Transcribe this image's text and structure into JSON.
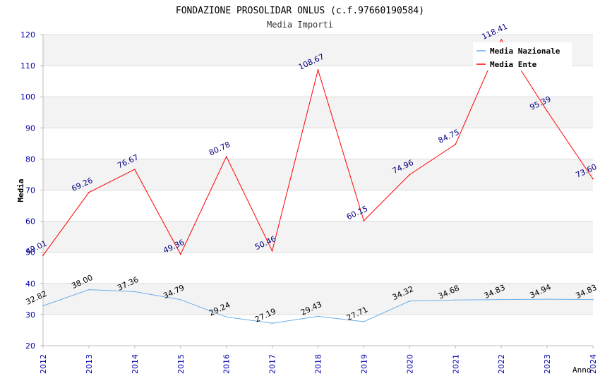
{
  "chart_data": {
    "type": "line",
    "title": "FONDAZIONE PROSOLIDAR ONLUS (c.f.97660190584)",
    "subtitle": "Media Importi",
    "xlabel": "Anno",
    "ylabel": "Media",
    "ylim": [
      20,
      120
    ],
    "yticks": [
      "20",
      "30",
      "40",
      "50",
      "60",
      "70",
      "80",
      "90",
      "100",
      "110",
      "120"
    ],
    "x": [
      "2012",
      "2013",
      "2014",
      "2015",
      "2016",
      "2017",
      "2018",
      "2019",
      "2020",
      "2021",
      "2022",
      "2023",
      "2024"
    ],
    "grid": true,
    "legend_position": "top-right",
    "series": [
      {
        "name": "Media Nazionale",
        "color": "#6aaee8",
        "label_color": "#000000",
        "values": [
          32.82,
          38.0,
          37.36,
          34.79,
          29.24,
          27.19,
          29.43,
          27.71,
          34.32,
          34.68,
          34.83,
          34.94,
          34.83
        ],
        "labels": [
          "32.82",
          "38.00",
          "37.36",
          "34.79",
          "29.24",
          "27.19",
          "29.43",
          "27.71",
          "34.32",
          "34.68",
          "34.83",
          "34.94",
          "34.83"
        ]
      },
      {
        "name": "Media Ente",
        "color": "#ff0000",
        "label_color": "#000080",
        "values": [
          49.01,
          69.26,
          76.67,
          49.36,
          80.78,
          50.46,
          108.67,
          60.15,
          74.96,
          84.75,
          118.41,
          95.39,
          73.6
        ],
        "labels": [
          "49.01",
          "69.26",
          "76.67",
          "49.36",
          "80.78",
          "50.46",
          "108.67",
          "60.15",
          "74.96",
          "84.75",
          "118.41",
          "95.39",
          "73.60"
        ]
      }
    ]
  }
}
